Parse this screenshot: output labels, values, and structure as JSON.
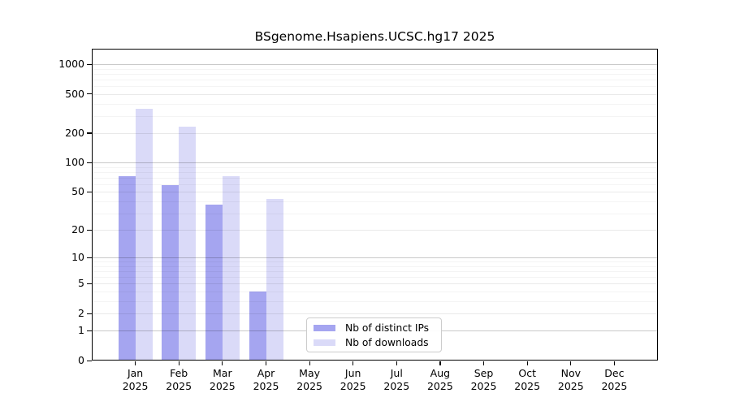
{
  "chart_data": {
    "type": "bar",
    "title": "BSgenome.Hsapiens.UCSC.hg17 2025",
    "y_scale": "log1p",
    "ylim": [
      0,
      1430
    ],
    "grid": "major-and-minor-horizontal, drawn over bars",
    "legend_position": "lower center inside plot",
    "categories": [
      "Jan",
      "Feb",
      "Mar",
      "Apr",
      "May",
      "Jun",
      "Jul",
      "Aug",
      "Sep",
      "Oct",
      "Nov",
      "Dec"
    ],
    "year": "2025",
    "series": [
      {
        "name": "Nb of distinct IPs",
        "color": "#a5a5f0",
        "values": [
          72,
          59,
          37,
          4,
          0,
          0,
          0,
          0,
          0,
          0,
          0,
          0
        ]
      },
      {
        "name": "Nb of downloads",
        "color": "#dadaf8",
        "values": [
          355,
          235,
          73,
          42,
          0,
          0,
          0,
          0,
          0,
          0,
          0,
          0
        ]
      }
    ],
    "y_ticks": [
      0,
      1,
      2,
      5,
      10,
      20,
      50,
      100,
      200,
      500,
      1000
    ],
    "y_minor_ticks": [
      3,
      4,
      6,
      7,
      8,
      9,
      30,
      40,
      60,
      70,
      80,
      90,
      300,
      400,
      600,
      700,
      800,
      900
    ],
    "y_decade_ticks": [
      1,
      10,
      100,
      1000
    ],
    "axis_color": "#000000",
    "background_color": "#ffffff"
  }
}
